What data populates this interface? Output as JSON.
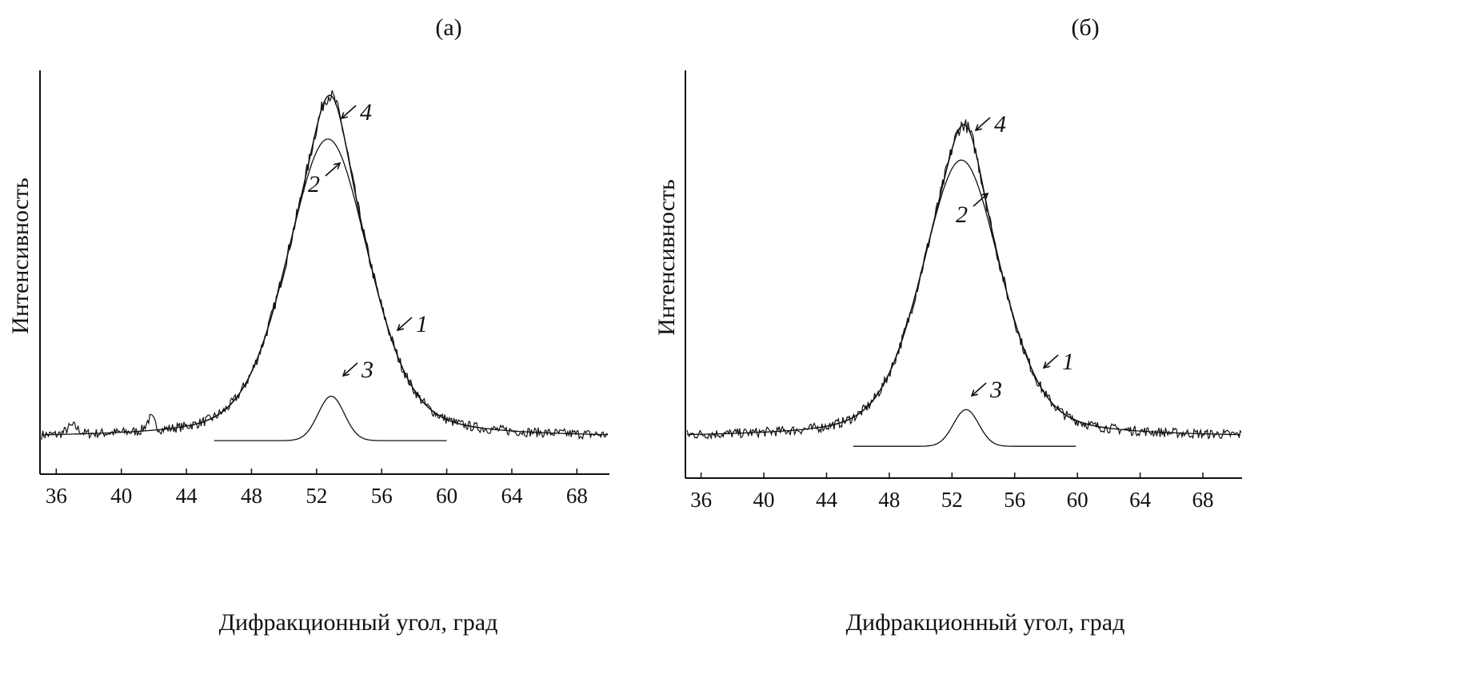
{
  "chart_data": [
    {
      "type": "line",
      "title": "(а)",
      "xlabel": "Дифракционный угол, град",
      "ylabel": "Интенсивность",
      "xlim": [
        35,
        70
      ],
      "ylim": [
        0,
        1
      ],
      "y_units": "relative (no tick labels)",
      "xticks": [
        36,
        40,
        44,
        48,
        52,
        56,
        60,
        64,
        68
      ],
      "grid": false,
      "legend": "none",
      "series": [
        {
          "name": "1",
          "kind": "experimental (noisy)",
          "baseline": 0.09,
          "components": [
            "2",
            "3"
          ]
        },
        {
          "name": "2",
          "kind": "fit",
          "center": 52.7,
          "amplitude": 0.74,
          "fwhm": 6.0,
          "baseline": 0.09,
          "x_range": [
            35,
            70
          ]
        },
        {
          "name": "3",
          "kind": "fit",
          "center": 52.9,
          "amplitude": 0.11,
          "fwhm": 1.9,
          "baseline": 0.083,
          "x_range": [
            45.7,
            60
          ]
        },
        {
          "name": "4",
          "kind": "sum 2+3",
          "peak_x": 52.7,
          "peak_y": 0.94
        }
      ],
      "annotations": [
        {
          "text": "1",
          "target_x": 57.2
        },
        {
          "text": "2",
          "target_x": 53.2
        },
        {
          "text": "3",
          "target_x": 53.3
        },
        {
          "text": "4",
          "target_x": 53.7
        }
      ]
    },
    {
      "type": "line",
      "title": "(б)",
      "xlabel": "Дифракционный угол, град",
      "ylabel": "Интенсивность",
      "xlim": [
        35,
        70.5
      ],
      "ylim": [
        0,
        1
      ],
      "y_units": "relative (no tick labels)",
      "xticks": [
        36,
        40,
        44,
        48,
        52,
        56,
        60,
        64,
        68
      ],
      "grid": false,
      "legend": "none",
      "series": [
        {
          "name": "1",
          "kind": "experimental (noisy)",
          "baseline": 0.1,
          "components": [
            "2",
            "3"
          ]
        },
        {
          "name": "2",
          "kind": "fit",
          "center": 52.6,
          "amplitude": 0.68,
          "fwhm": 6.0,
          "baseline": 0.1,
          "x_range": [
            35,
            70.5
          ]
        },
        {
          "name": "3",
          "kind": "fit",
          "center": 52.9,
          "amplitude": 0.09,
          "fwhm": 1.9,
          "baseline": 0.078,
          "x_range": [
            45.7,
            59.9
          ]
        },
        {
          "name": "4",
          "kind": "sum 2+3",
          "peak_x": 52.6,
          "peak_y": 0.87
        }
      ],
      "annotations": [
        {
          "text": "1",
          "target_x": 58.2
        },
        {
          "text": "2",
          "target_x": 53.2
        },
        {
          "text": "3",
          "target_x": 53.1
        },
        {
          "text": "4",
          "target_x": 53.3
        }
      ]
    }
  ]
}
